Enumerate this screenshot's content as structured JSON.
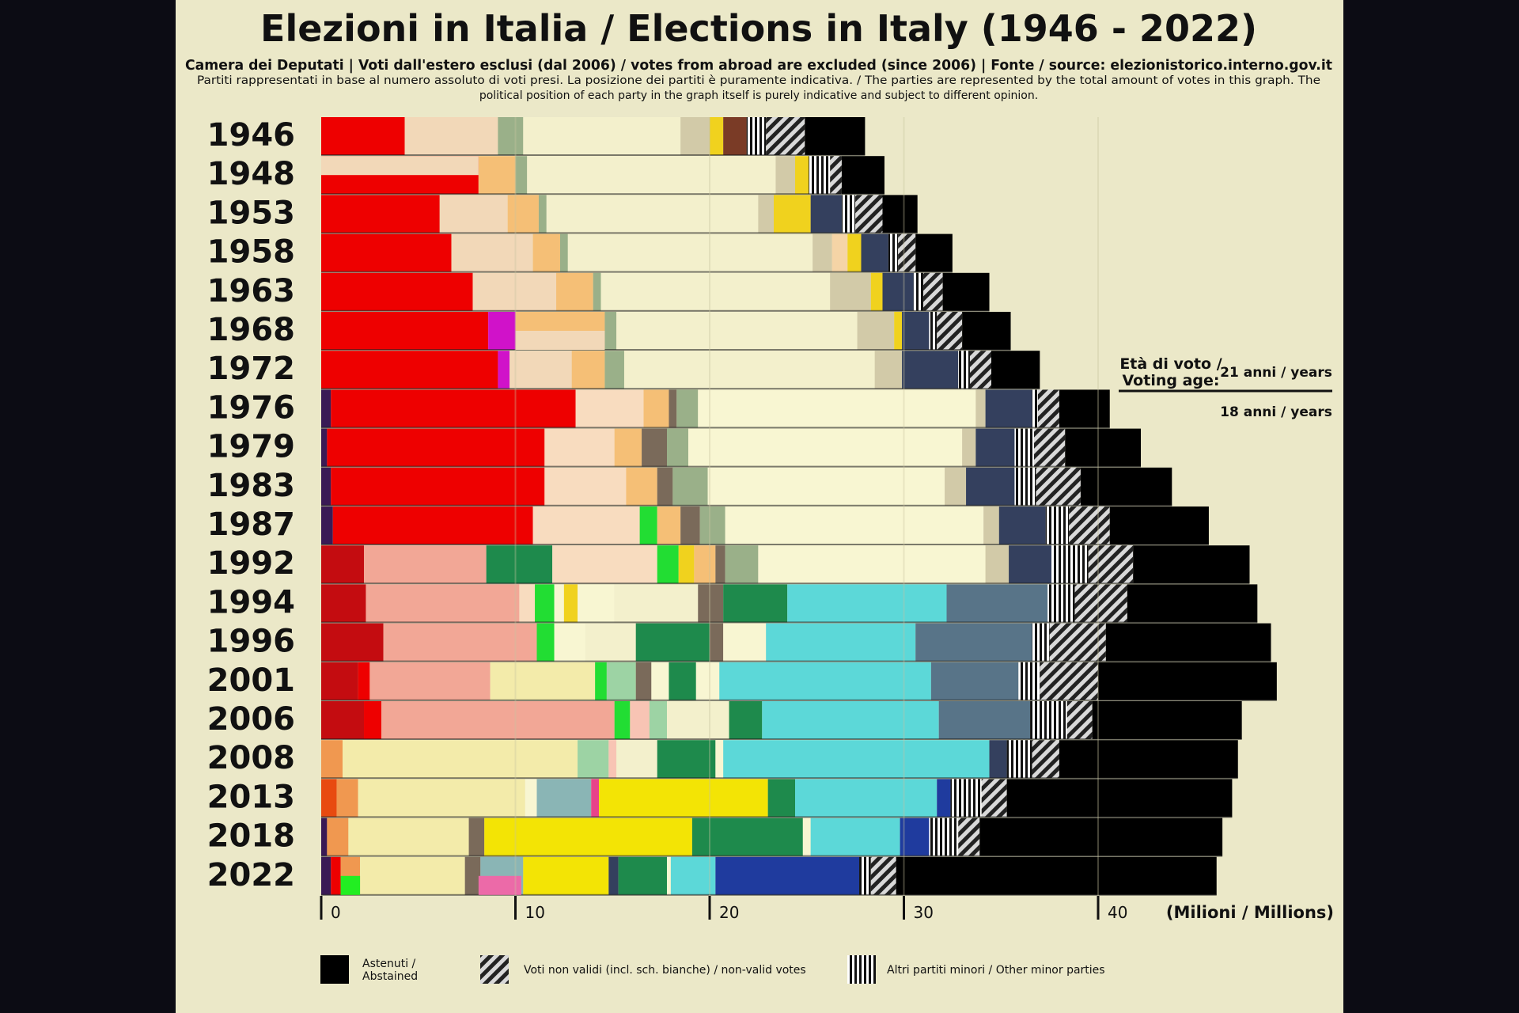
{
  "title": "Elezioni in Italia / Elections in Italy (1946 - 2022)",
  "subtitle": "Camera dei Deputati | Voti dall'estero esclusi (dal 2006) / votes from abroad are excluded (since 2006) | Fonte / source:  elezionistorico.interno.gov.it",
  "note_line1": "Partiti rappresentati in base al numero assoluto di voti presi. La posizione dei partiti è puramente indicativa. / The parties are represented by the total amount of votes in this graph. The",
  "note_line2": "political position of each party in the graph itself is purely indicative and subject to different opinion.",
  "voting_age": {
    "label_line1": "Età di voto /",
    "label_line2": "Voting age:",
    "age_21": "21 anni / years",
    "age_18": "18 anni / years"
  },
  "legend": {
    "abstained": "Astenuti /\nAbstained",
    "invalid": "Voti non validi (incl. sch. bianche) / non-valid votes",
    "minor": "Altri partiti minori / Other minor parties"
  },
  "axis_unit": "(Milioni / Millions)",
  "chart_data": {
    "type": "bar",
    "orientation": "horizontal",
    "stacked": true,
    "title": "Elezioni in Italia / Elections in Italy (1946 - 2022)",
    "xlabel": "(Milioni / Millions)",
    "xlim": [
      0,
      46
    ],
    "xticks": [
      0,
      10,
      20,
      30,
      40
    ],
    "grid": true,
    "categories": [
      "1946",
      "1948",
      "1953",
      "1958",
      "1963",
      "1968",
      "1972",
      "1976",
      "1979",
      "1983",
      "1987",
      "1992",
      "1994",
      "1996",
      "2001",
      "2006",
      "2008",
      "2013",
      "2018",
      "2022"
    ],
    "rows": [
      {
        "year": "1946",
        "segments": [
          [
            "#ee0000",
            4.3
          ],
          [
            "#f2d8b8",
            4.8
          ],
          [
            "#9ab089",
            1.3
          ],
          [
            "#f3f0cc",
            8.1
          ],
          [
            "#d2caa8",
            1.5
          ],
          [
            "#f0d21e",
            0.7
          ],
          [
            "#7a3b26",
            1.2
          ],
          [
            "#striped",
            1.0
          ],
          [
            "#hatched",
            2.0
          ],
          [
            "#000000",
            3.1
          ]
        ]
      },
      {
        "year": "1948",
        "segments": [
          [
            "#ee0000",
            8.1
          ],
          [
            "#f5bf76",
            1.9
          ],
          [
            "#9ab089",
            0.6
          ],
          [
            "#f3f0cc",
            12.8
          ],
          [
            "#d2caa8",
            1.0
          ],
          [
            "#f0d21e",
            0.7
          ],
          [
            "#striped",
            1.1
          ],
          [
            "#hatched",
            0.6
          ],
          [
            "#000000",
            2.2
          ]
        ]
      },
      {
        "year": "1953",
        "segments": [
          [
            "#ee0000",
            6.1
          ],
          [
            "#f2d8b8",
            3.5
          ],
          [
            "#f5bf76",
            1.6
          ],
          [
            "#9ab089",
            0.4
          ],
          [
            "#f3f0cc",
            10.9
          ],
          [
            "#d2caa8",
            0.8
          ],
          [
            "#f0d21e",
            1.9
          ],
          [
            "#34405e",
            1.6
          ],
          [
            "#striped",
            0.7
          ],
          [
            "#hatched",
            1.4
          ],
          [
            "#000000",
            1.8
          ]
        ]
      },
      {
        "year": "1958",
        "segments": [
          [
            "#ee0000",
            6.7
          ],
          [
            "#f2d8b8",
            4.2
          ],
          [
            "#f5bf76",
            1.4
          ],
          [
            "#9ab089",
            0.4
          ],
          [
            "#f3f0cc",
            12.6
          ],
          [
            "#d2caa8",
            1.0
          ],
          [
            "#f5d4a6",
            0.8
          ],
          [
            "#f0d21e",
            0.7
          ],
          [
            "#34405e",
            1.4
          ],
          [
            "#striped",
            0.5
          ],
          [
            "#hatched",
            0.9
          ],
          [
            "#000000",
            1.9
          ]
        ]
      },
      {
        "year": "1963",
        "segments": [
          [
            "#ee0000",
            7.8
          ],
          [
            "#f2d8b8",
            4.3
          ],
          [
            "#f5bf76",
            1.9
          ],
          [
            "#9ab089",
            0.4
          ],
          [
            "#f3f0cc",
            11.8
          ],
          [
            "#d2caa8",
            2.1
          ],
          [
            "#f0d21e",
            0.6
          ],
          [
            "#34405e",
            1.6
          ],
          [
            "#striped",
            0.5
          ],
          [
            "#hatched",
            1.0
          ],
          [
            "#000000",
            2.4
          ]
        ]
      },
      {
        "year": "1968",
        "segments": [
          [
            "#ee0000",
            8.6
          ],
          [
            "#d012c9",
            1.4
          ],
          [
            "#f5bf76",
            4.6
          ],
          [
            "#9ab089",
            0.6
          ],
          [
            "#f3f0cc",
            12.4
          ],
          [
            "#d2caa8",
            1.9
          ],
          [
            "#f0d21e",
            0.4
          ],
          [
            "#34405e",
            1.4
          ],
          [
            "#striped",
            0.4
          ],
          [
            "#hatched",
            1.3
          ],
          [
            "#000000",
            2.5
          ]
        ]
      },
      {
        "year": "1972",
        "segments": [
          [
            "#ee0000",
            9.1
          ],
          [
            "#d012c9",
            0.6
          ],
          [
            "#f2d8b8",
            3.2
          ],
          [
            "#f5bf76",
            1.7
          ],
          [
            "#9ab089",
            1.0
          ],
          [
            "#f3f0cc",
            12.9
          ],
          [
            "#d2caa8",
            1.4
          ],
          [
            "#34405e",
            2.9
          ],
          [
            "#striped",
            0.6
          ],
          [
            "#hatched",
            1.1
          ],
          [
            "#000000",
            2.5
          ]
        ]
      },
      {
        "year": "1976",
        "segments": [
          [
            "#3a1a55",
            0.5
          ],
          [
            "#ee0000",
            12.6
          ],
          [
            "#f8dcbf",
            3.5
          ],
          [
            "#f5bf76",
            1.3
          ],
          [
            "#7a6a5a",
            0.4
          ],
          [
            "#9ab089",
            1.1
          ],
          [
            "#f8f6d2",
            14.3
          ],
          [
            "#d2caa8",
            0.5
          ],
          [
            "#34405e",
            2.4
          ],
          [
            "#striped",
            0.3
          ],
          [
            "#hatched",
            1.1
          ],
          [
            "#000000",
            2.6
          ]
        ]
      },
      {
        "year": "1979",
        "segments": [
          [
            "#3a1a55",
            0.3
          ],
          [
            "#ee0000",
            11.2
          ],
          [
            "#f8dcbf",
            3.6
          ],
          [
            "#f5bf76",
            1.4
          ],
          [
            "#7a6a5a",
            1.3
          ],
          [
            "#9ab089",
            1.1
          ],
          [
            "#f8f6d2",
            14.1
          ],
          [
            "#d2caa8",
            0.7
          ],
          [
            "#34405e",
            2.0
          ],
          [
            "#striped",
            1.0
          ],
          [
            "#hatched",
            1.6
          ],
          [
            "#000000",
            3.9
          ]
        ]
      },
      {
        "year": "1983",
        "segments": [
          [
            "#3a1a55",
            0.5
          ],
          [
            "#ee0000",
            11.0
          ],
          [
            "#f8dcbf",
            4.2
          ],
          [
            "#f5bf76",
            1.6
          ],
          [
            "#7a6a5a",
            0.8
          ],
          [
            "#9ab089",
            1.8
          ],
          [
            "#f8f6d2",
            12.2
          ],
          [
            "#d2caa8",
            1.1
          ],
          [
            "#34405e",
            2.5
          ],
          [
            "#striped",
            1.1
          ],
          [
            "#hatched",
            2.3
          ],
          [
            "#000000",
            4.7
          ]
        ]
      },
      {
        "year": "1987",
        "segments": [
          [
            "#3a1a55",
            0.6
          ],
          [
            "#ee0000",
            10.3
          ],
          [
            "#f8dcbf",
            5.5
          ],
          [
            "#22dd33",
            0.9
          ],
          [
            "#f5bf76",
            1.2
          ],
          [
            "#7a6a5a",
            1.0
          ],
          [
            "#9ab089",
            1.3
          ],
          [
            "#f8f6d2",
            13.3
          ],
          [
            "#d2caa8",
            0.8
          ],
          [
            "#34405e",
            2.4
          ],
          [
            "#striped",
            1.2
          ],
          [
            "#hatched",
            2.1
          ],
          [
            "#000000",
            5.1
          ]
        ]
      },
      {
        "year": "1992",
        "segments": [
          [
            "#c40c10",
            2.2
          ],
          [
            "#f2a796",
            6.3
          ],
          [
            "#1e8a4c",
            3.4
          ],
          [
            "#f8dcbf",
            5.4
          ],
          [
            "#22dd33",
            1.1
          ],
          [
            "#f0d21e",
            0.8
          ],
          [
            "#f5bf76",
            1.1
          ],
          [
            "#7a6a5a",
            0.5
          ],
          [
            "#9ab089",
            1.7
          ],
          [
            "#f8f6d2",
            11.7
          ],
          [
            "#d2caa8",
            1.2
          ],
          [
            "#34405e",
            2.2
          ],
          [
            "#striped",
            1.9
          ],
          [
            "#hatched",
            2.3
          ],
          [
            "#000000",
            6.0
          ]
        ]
      },
      {
        "year": "1994",
        "segments": [
          [
            "#c40c10",
            2.3
          ],
          [
            "#f2a796",
            7.9
          ],
          [
            "#f8dcbf",
            0.8
          ],
          [
            "#22dd33",
            1.0
          ],
          [
            "#f8f6d2",
            0.5
          ],
          [
            "#f0d21e",
            0.7
          ],
          [
            "#f8f6d2",
            1.9
          ],
          [
            "#f3f0cc",
            4.3
          ],
          [
            "#7a6a5a",
            1.3
          ],
          [
            "#1e8a4c",
            3.3
          ],
          [
            "#5cd8d8",
            8.2
          ],
          [
            "#587488",
            5.2
          ],
          [
            "#striped",
            1.4
          ],
          [
            "#hatched",
            2.7
          ],
          [
            "#000000",
            6.7
          ]
        ]
      },
      {
        "year": "1996",
        "segments": [
          [
            "#c40c10",
            3.2
          ],
          [
            "#f2a796",
            7.9
          ],
          [
            "#22dd33",
            0.9
          ],
          [
            "#f8f6d2",
            1.6
          ],
          [
            "#f3f0cc",
            2.6
          ],
          [
            "#1e8a4c",
            3.8
          ],
          [
            "#7a6a5a",
            0.7
          ],
          [
            "#f8f6d2",
            2.2
          ],
          [
            "#5cd8d8",
            7.7
          ],
          [
            "#587488",
            6.0
          ],
          [
            "#striped",
            0.9
          ],
          [
            "#hatched",
            2.9
          ],
          [
            "#000000",
            8.5
          ]
        ]
      },
      {
        "year": "2001",
        "segments": [
          [
            "#c40c10",
            1.9
          ],
          [
            "#ee0000",
            0.6
          ],
          [
            "#f2a796",
            6.2
          ],
          [
            "#f3ebaa",
            5.4
          ],
          [
            "#22dd33",
            0.6
          ],
          [
            "#9dd3a4",
            1.5
          ],
          [
            "#7a6a5a",
            0.8
          ],
          [
            "#f8f6d2",
            0.9
          ],
          [
            "#1e8a4c",
            1.4
          ],
          [
            "#f8f6d2",
            1.2
          ],
          [
            "#5cd8d8",
            10.9
          ],
          [
            "#587488",
            4.5
          ],
          [
            "#striped",
            1.1
          ],
          [
            "#hatched",
            3.0
          ],
          [
            "#000000",
            9.2
          ]
        ]
      },
      {
        "year": "2006",
        "segments": [
          [
            "#c40c10",
            2.2
          ],
          [
            "#ee0000",
            0.9
          ],
          [
            "#f2a796",
            12.0
          ],
          [
            "#22dd33",
            0.8
          ],
          [
            "#f8c4b4",
            1.0
          ],
          [
            "#9dd3a4",
            0.9
          ],
          [
            "#f3f0cc",
            3.2
          ],
          [
            "#1e8a4c",
            1.7
          ],
          [
            "#5cd8d8",
            9.1
          ],
          [
            "#587488",
            4.7
          ],
          [
            "#striped",
            1.9
          ],
          [
            "#hatched",
            1.3
          ],
          [
            "#000000",
            7.7
          ]
        ]
      },
      {
        "year": "2008",
        "segments": [
          [
            "#f09850",
            1.1
          ],
          [
            "#f3ebaa",
            12.1
          ],
          [
            "#9dd3a4",
            1.6
          ],
          [
            "#f8c4b4",
            0.4
          ],
          [
            "#f3f0cc",
            2.1
          ],
          [
            "#1e8a4c",
            3.0
          ],
          [
            "#f8f6d2",
            0.4
          ],
          [
            "#5cd8d8",
            13.7
          ],
          [
            "#34405e",
            0.9
          ],
          [
            "#striped",
            1.3
          ],
          [
            "#hatched",
            1.4
          ],
          [
            "#000000",
            9.2
          ]
        ]
      },
      {
        "year": "2013",
        "segments": [
          [
            "#e84a10",
            0.8
          ],
          [
            "#f09850",
            1.1
          ],
          [
            "#f3ebaa",
            8.6
          ],
          [
            "#f8f6d2",
            0.6
          ],
          [
            "#8ab5b5",
            2.8
          ],
          [
            "#e8438a",
            0.4
          ],
          [
            "#f3e405",
            8.7
          ],
          [
            "#1e8a4c",
            1.4
          ],
          [
            "#5cd8d8",
            7.3
          ],
          [
            "#1f3b9e",
            0.7
          ],
          [
            "#striped",
            1.6
          ],
          [
            "#hatched",
            1.3
          ],
          [
            "#000000",
            11.6
          ]
        ]
      },
      {
        "year": "2018",
        "segments": [
          [
            "#3a1a55",
            0.3
          ],
          [
            "#f09850",
            1.1
          ],
          [
            "#f3ebaa",
            6.2
          ],
          [
            "#7a6a5a",
            0.8
          ],
          [
            "#f3e405",
            10.7
          ],
          [
            "#1e8a4c",
            5.7
          ],
          [
            "#f8f6d2",
            0.4
          ],
          [
            "#5cd8d8",
            4.6
          ],
          [
            "#1f3b9e",
            1.5
          ],
          [
            "#striped",
            1.5
          ],
          [
            "#hatched",
            1.1
          ],
          [
            "#000000",
            12.5
          ]
        ]
      },
      {
        "year": "2022",
        "segments": [
          [
            "#3a1a55",
            0.5
          ],
          [
            "#ee0000",
            0.5
          ],
          [
            "#f09850",
            1.0
          ],
          [
            "#f3ebaa",
            5.4
          ],
          [
            "#7a6a5a",
            0.8
          ],
          [
            "#8ab5b5",
            2.2
          ],
          [
            "#f3e405",
            4.4
          ],
          [
            "#34405e",
            0.5
          ],
          [
            "#1e8a4c",
            2.5
          ],
          [
            "#f8f6d2",
            0.2
          ],
          [
            "#5cd8d8",
            2.3
          ],
          [
            "#1f3b9e",
            7.4
          ],
          [
            "#striped",
            0.6
          ],
          [
            "#hatched",
            1.3
          ],
          [
            "#000000",
            16.5
          ]
        ]
      }
    ],
    "overlays": [
      {
        "year": "1948",
        "from": 0,
        "to": 8.1,
        "top_color": "#f2d8b8"
      },
      {
        "year": "1968",
        "from": 10.0,
        "to": 14.6,
        "bottom_color": "#f2d8b8"
      },
      {
        "year": "2022",
        "from": 1.0,
        "to": 2.0,
        "bottom_color": "#22ee22"
      },
      {
        "year": "2022",
        "from": 8.1,
        "to": 10.3,
        "bottom_color": "#ec6aa8"
      }
    ]
  },
  "colors": {
    "page_bg": "#0c0c14",
    "panel_bg": "#ebe8c8",
    "text": "#111111"
  }
}
